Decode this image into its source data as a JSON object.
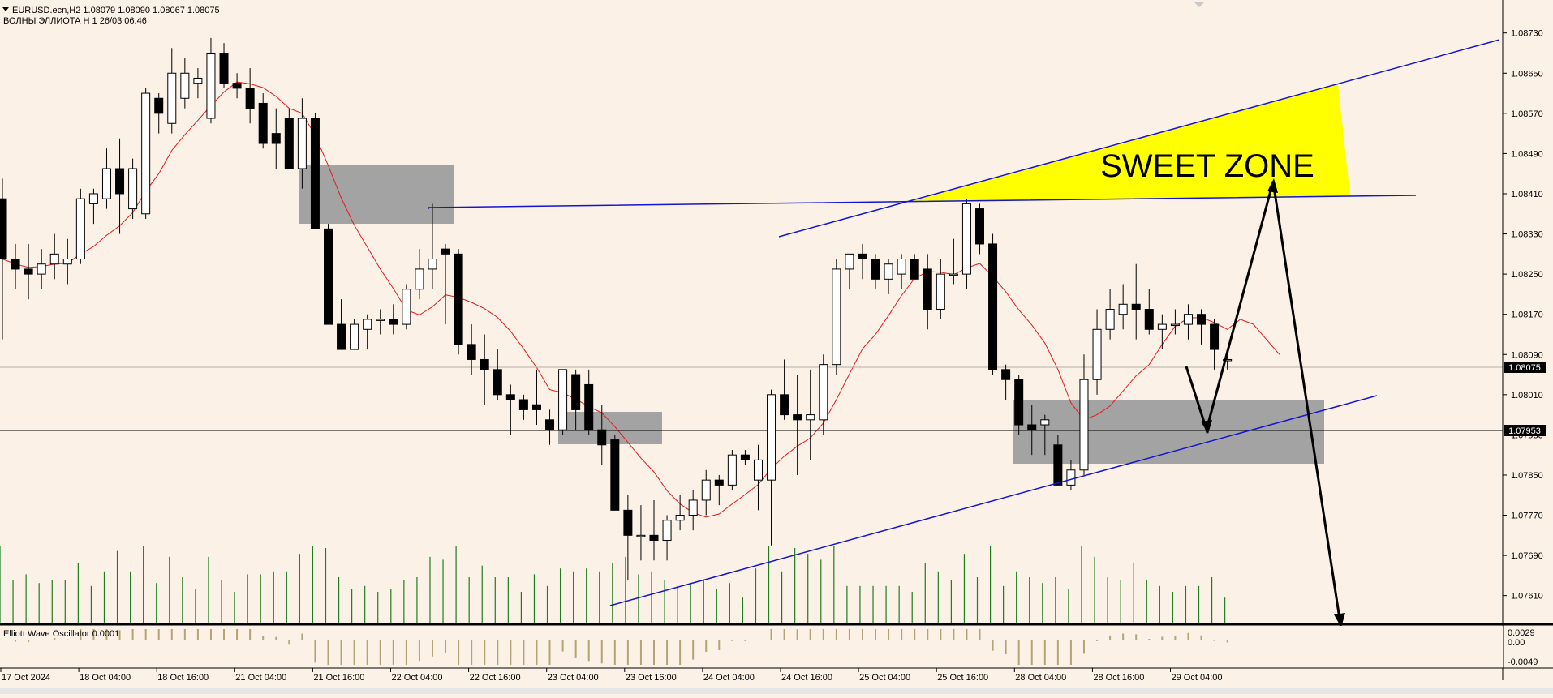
{
  "header": {
    "symbol_line": "EURUSD.ecn,H2  1.08079 1.08090 1.08067 1.08075",
    "indicator_line": "ВОЛНЫ ЭЛЛИОТА Н 1 26/03 06:46"
  },
  "oscillator": {
    "label": "Elliott Wave Oscillator 0.0001",
    "scale_labels": [
      "0.0029",
      "0.00",
      "-0.0049"
    ]
  },
  "annotation": {
    "sweet_zone": "SWEET ZONE"
  },
  "price_tags": {
    "current": "1.08075",
    "level": "1.07953"
  },
  "colors": {
    "background": "#fbf1e6",
    "bull_candle": "#ffffff",
    "bear_candle": "#000000",
    "moving_average": "#e8161b",
    "trendline": "#1414d2",
    "zone": "#a3a3a3",
    "sweet_zone": "#ffff00",
    "volume": "#1e7d1e",
    "oscillator": "#b3a474"
  },
  "chart_data": {
    "type": "candlestick",
    "symbol": "EURUSD.ecn",
    "timeframe": "H2",
    "last_ohlc": {
      "open": 1.08079,
      "high": 1.0809,
      "low": 1.08067,
      "close": 1.08075
    },
    "ylim": [
      1.07553,
      1.08786
    ],
    "y_ticks": [
      "1.08730",
      "1.08650",
      "1.08570",
      "1.08490",
      "1.08410",
      "1.08330",
      "1.08250",
      "1.08170",
      "1.08090",
      "1.08010",
      "1.07930",
      "1.07850",
      "1.07770",
      "1.07690",
      "1.07610"
    ],
    "x_ticks": [
      "17 Oct 2024",
      "18 Oct 04:00",
      "18 Oct 16:00",
      "21 Oct 04:00",
      "21 Oct 16:00",
      "22 Oct 04:00",
      "22 Oct 16:00",
      "23 Oct 04:00",
      "23 Oct 16:00",
      "24 Oct 04:00",
      "24 Oct 16:00",
      "25 Oct 04:00",
      "25 Oct 16:00",
      "28 Oct 04:00",
      "28 Oct 16:00",
      "29 Oct 04:00"
    ],
    "candles": [
      [
        1.084,
        1.0844,
        1.0812,
        1.0828
      ],
      [
        1.0828,
        1.0831,
        1.0822,
        1.0826
      ],
      [
        1.0826,
        1.0831,
        1.082,
        1.0825
      ],
      [
        1.0825,
        1.083,
        1.0822,
        1.0827
      ],
      [
        1.0827,
        1.0833,
        1.0824,
        1.0829
      ],
      [
        1.0827,
        1.0832,
        1.0823,
        1.0828
      ],
      [
        1.0828,
        1.0842,
        1.0827,
        1.084
      ],
      [
        1.0839,
        1.0842,
        1.0835,
        1.0841
      ],
      [
        1.084,
        1.085,
        1.0838,
        1.0846
      ],
      [
        1.0846,
        1.0852,
        1.0833,
        1.0841
      ],
      [
        1.0838,
        1.0848,
        1.0836,
        1.0846
      ],
      [
        1.0837,
        1.0862,
        1.0836,
        1.0861
      ],
      [
        1.086,
        1.0861,
        1.0853,
        1.0857
      ],
      [
        1.0855,
        1.087,
        1.0853,
        1.0865
      ],
      [
        1.086,
        1.0868,
        1.0858,
        1.0865
      ],
      [
        1.0863,
        1.0866,
        1.086,
        1.0864
      ],
      [
        1.0856,
        1.0872,
        1.0855,
        1.0869
      ],
      [
        1.0869,
        1.0871,
        1.0862,
        1.0863
      ],
      [
        1.0863,
        1.0865,
        1.086,
        1.0862
      ],
      [
        1.0862,
        1.0866,
        1.0855,
        1.0858
      ],
      [
        1.0859,
        1.0861,
        1.085,
        1.0851
      ],
      [
        1.0853,
        1.0858,
        1.0846,
        1.0851
      ],
      [
        1.0856,
        1.0858,
        1.0846,
        1.0846
      ],
      [
        1.0846,
        1.086,
        1.0842,
        1.0856
      ],
      [
        1.0856,
        1.0857,
        1.0834,
        1.0834
      ],
      [
        1.0834,
        1.0835,
        1.0815,
        1.0815
      ],
      [
        1.0815,
        1.082,
        1.081,
        1.081
      ],
      [
        1.081,
        1.0816,
        1.081,
        1.0815
      ],
      [
        1.0814,
        1.0817,
        1.081,
        1.0816
      ],
      [
        1.0816,
        1.0818,
        1.0813,
        1.0816
      ],
      [
        1.0816,
        1.0819,
        1.0813,
        1.0815
      ],
      [
        1.0815,
        1.0823,
        1.0814,
        1.0822
      ],
      [
        1.0822,
        1.083,
        1.082,
        1.0826
      ],
      [
        1.0826,
        1.0839,
        1.0822,
        1.0828
      ],
      [
        1.083,
        1.0831,
        1.0815,
        1.0829
      ],
      [
        1.0829,
        1.083,
        1.0809,
        1.0811
      ],
      [
        1.0811,
        1.0815,
        1.0805,
        1.0808
      ],
      [
        1.0808,
        1.0813,
        1.0799,
        1.0806
      ],
      [
        1.0806,
        1.081,
        1.08,
        1.0801
      ],
      [
        1.0801,
        1.0803,
        1.0793,
        1.08
      ],
      [
        1.08,
        1.0801,
        1.0796,
        1.0798
      ],
      [
        1.0799,
        1.0806,
        1.0795,
        1.0798
      ],
      [
        1.0796,
        1.0798,
        1.0791,
        1.0794
      ],
      [
        1.0794,
        1.0806,
        1.0793,
        1.0806
      ],
      [
        1.0805,
        1.0806,
        1.0794,
        1.0798
      ],
      [
        1.0803,
        1.0806,
        1.0793,
        1.0794
      ],
      [
        1.0794,
        1.0799,
        1.0787,
        1.0791
      ],
      [
        1.0792,
        1.0793,
        1.0778,
        1.0778
      ],
      [
        1.0778,
        1.0781,
        1.0764,
        1.0773
      ],
      [
        1.0773,
        1.0779,
        1.0768,
        1.0773
      ],
      [
        1.0773,
        1.078,
        1.0768,
        1.0772
      ],
      [
        1.0772,
        1.0777,
        1.0768,
        1.0776
      ],
      [
        1.0776,
        1.0781,
        1.0774,
        1.0777
      ],
      [
        1.0777,
        1.0782,
        1.0774,
        1.078
      ],
      [
        1.078,
        1.0786,
        1.0777,
        1.0784
      ],
      [
        1.0784,
        1.0785,
        1.0779,
        1.0783
      ],
      [
        1.0783,
        1.079,
        1.0782,
        1.0789
      ],
      [
        1.0789,
        1.079,
        1.0787,
        1.0788
      ],
      [
        1.0784,
        1.0791,
        1.0778,
        1.0788
      ],
      [
        1.0784,
        1.0802,
        1.0771,
        1.0801
      ],
      [
        1.0801,
        1.0808,
        1.0796,
        1.0797
      ],
      [
        1.0797,
        1.0805,
        1.0785,
        1.0796
      ],
      [
        1.0796,
        1.0806,
        1.0788,
        1.0797
      ],
      [
        1.0796,
        1.0809,
        1.0793,
        1.0807
      ],
      [
        1.0807,
        1.0828,
        1.0805,
        1.0826
      ],
      [
        1.0826,
        1.0829,
        1.0822,
        1.0829
      ],
      [
        1.0829,
        1.0831,
        1.0824,
        1.0828
      ],
      [
        1.0828,
        1.0829,
        1.0822,
        1.0824
      ],
      [
        1.0824,
        1.0828,
        1.0821,
        1.0827
      ],
      [
        1.0825,
        1.0829,
        1.0822,
        1.0828
      ],
      [
        1.0828,
        1.0829,
        1.0824,
        1.0824
      ],
      [
        1.0826,
        1.0829,
        1.0814,
        1.0818
      ],
      [
        1.0818,
        1.0828,
        1.0816,
        1.0825
      ],
      [
        1.0825,
        1.0832,
        1.0823,
        1.0825
      ],
      [
        1.0825,
        1.084,
        1.0822,
        1.0839
      ],
      [
        1.0838,
        1.0839,
        1.0829,
        1.0831
      ],
      [
        1.0831,
        1.0833,
        1.0805,
        1.0806
      ],
      [
        1.0806,
        1.0807,
        1.08,
        1.0804
      ],
      [
        1.0804,
        1.0805,
        1.0793,
        1.0795
      ],
      [
        1.0795,
        1.0799,
        1.0789,
        1.0794
      ],
      [
        1.0795,
        1.0797,
        1.0789,
        1.0796
      ],
      [
        1.0791,
        1.0793,
        1.0783,
        1.0783
      ],
      [
        1.0783,
        1.0788,
        1.0782,
        1.0786
      ],
      [
        1.0786,
        1.0809,
        1.0785,
        1.0804
      ],
      [
        1.0804,
        1.0818,
        1.0801,
        1.0814
      ],
      [
        1.0814,
        1.0822,
        1.0812,
        1.0818
      ],
      [
        1.0817,
        1.0823,
        1.0814,
        1.0819
      ],
      [
        1.0819,
        1.0827,
        1.0812,
        1.0818
      ],
      [
        1.0818,
        1.0822,
        1.0813,
        1.0814
      ],
      [
        1.0814,
        1.0817,
        1.081,
        1.0815
      ],
      [
        1.0815,
        1.0818,
        1.0813,
        1.0815
      ],
      [
        1.0815,
        1.0819,
        1.0812,
        1.0817
      ],
      [
        1.0817,
        1.0818,
        1.0811,
        1.0815
      ],
      [
        1.0815,
        1.0816,
        1.0806,
        1.081
      ],
      [
        1.0808,
        1.0809,
        1.0806,
        1.0808
      ]
    ]
  }
}
